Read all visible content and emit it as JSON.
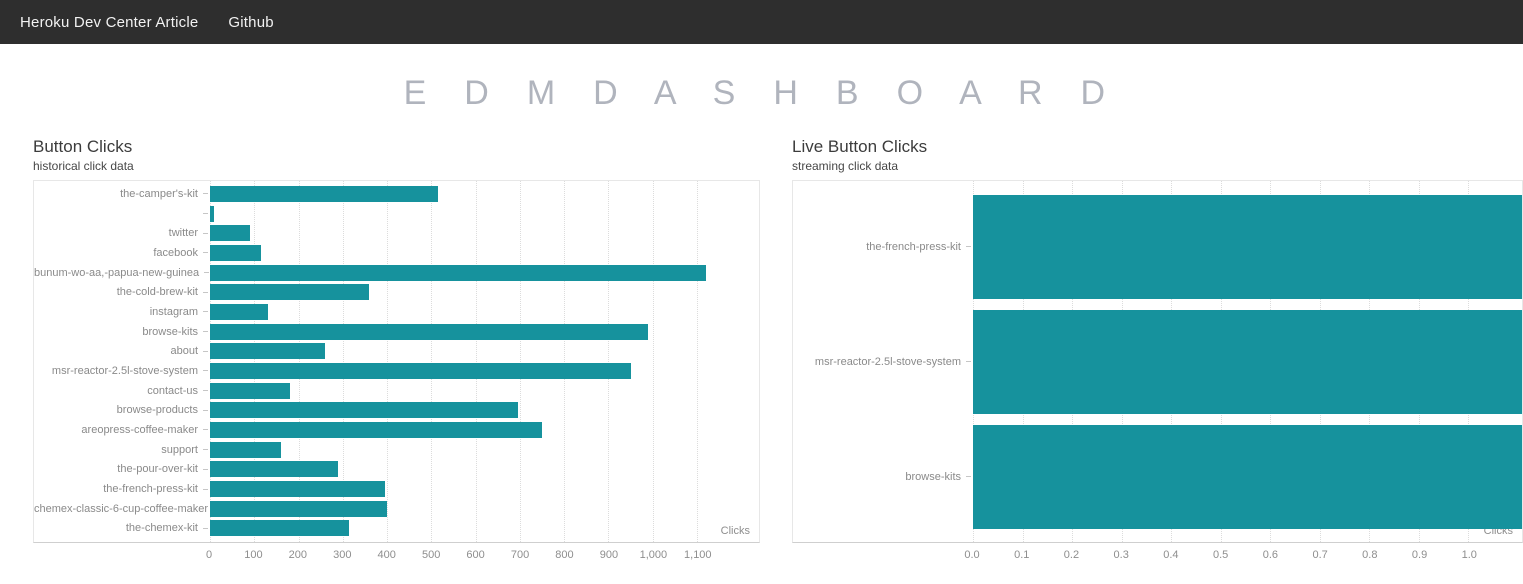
{
  "navbar": {
    "links": [
      "Heroku Dev Center Article",
      "Github"
    ]
  },
  "header": {
    "title": "E D M   D A S H B O A R D"
  },
  "colors": {
    "bar": "#16929d",
    "navbar_bg": "#2e2e2e",
    "title": "#b0b4bd"
  },
  "chart_data": [
    {
      "type": "bar",
      "orientation": "horizontal",
      "title": "Button Clicks",
      "subtitle": "historical click data",
      "x_axis_label": "Clicks",
      "legend": "none",
      "grid": true,
      "categories": [
        "the-camper's-kit",
        "",
        "twitter",
        "facebook",
        "bunum-wo-aa,-papua-new-guinea",
        "the-cold-brew-kit",
        "instagram",
        "browse-kits",
        "about",
        "msr-reactor-2.5l-stove-system",
        "contact-us",
        "browse-products",
        "areopress-coffee-maker",
        "support",
        "the-pour-over-kit",
        "the-french-press-kit",
        "chemex-classic-6-cup-coffee-maker",
        "the-chemex-kit"
      ],
      "values": [
        515,
        8,
        90,
        115,
        1120,
        360,
        130,
        990,
        260,
        950,
        180,
        695,
        750,
        160,
        290,
        395,
        400,
        315
      ],
      "xlim": [
        0,
        1240
      ],
      "bar_scale_max": 1240,
      "tick_values": [
        0,
        100,
        200,
        300,
        400,
        500,
        600,
        700,
        800,
        900,
        1000,
        1100
      ],
      "tick_labels": [
        "0",
        "100",
        "200",
        "300",
        "400",
        "500",
        "600",
        "700",
        "800",
        "900",
        "1,000",
        "1,100"
      ]
    },
    {
      "type": "bar",
      "orientation": "horizontal",
      "title": "Live Button Clicks",
      "subtitle": "streaming click data",
      "x_axis_label": "Clicks",
      "legend": "none",
      "grid": true,
      "categories": [
        "the-french-press-kit",
        "msr-reactor-2.5l-stove-system",
        "browse-kits"
      ],
      "values": [
        1.0,
        1.0,
        1.0
      ],
      "xlim": [
        0,
        1.108
      ],
      "bar_scale_max": 1.0,
      "tick_values": [
        0.0,
        0.1,
        0.2,
        0.3,
        0.4,
        0.5,
        0.6,
        0.7,
        0.8,
        0.9,
        1.0
      ],
      "tick_labels": [
        "0.0",
        "0.1",
        "0.2",
        "0.3",
        "0.4",
        "0.5",
        "0.6",
        "0.7",
        "0.8",
        "0.9",
        "1.0"
      ]
    }
  ]
}
